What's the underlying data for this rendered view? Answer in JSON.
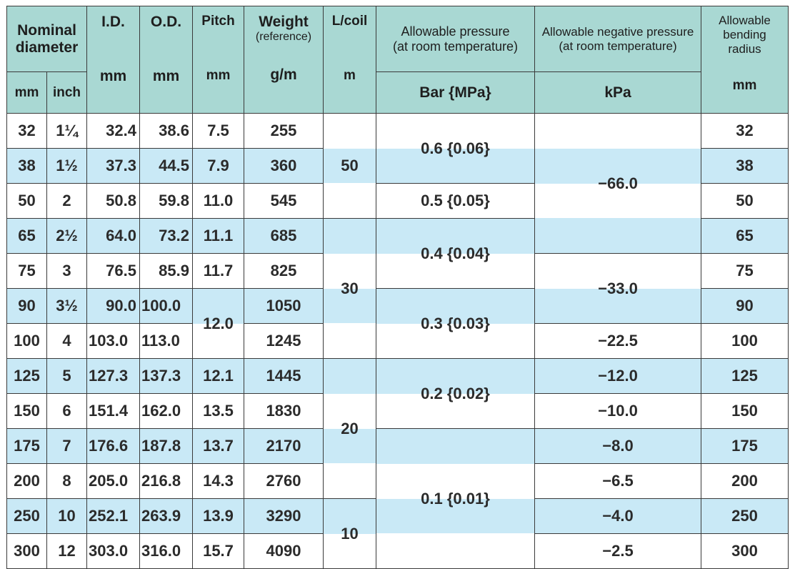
{
  "headers": {
    "nominal_diameter": "Nominal diameter",
    "id": "I.D.",
    "od": "O.D.",
    "pitch": "Pitch",
    "weight": "Weight",
    "weight_sub": "(reference)",
    "lcoil": "L/coil",
    "allow_pressure": "Allowable pressure",
    "allow_pressure_sub": "(at room temperature)",
    "allow_neg_pressure": "Allowable negative pressure",
    "allow_neg_pressure_sub": "(at room temperature)",
    "bending": "Allowable bending radius",
    "units": {
      "mm": "mm",
      "inch": "inch",
      "id": "mm",
      "od": "mm",
      "pitch": "mm",
      "weight": "g/m",
      "lcoil": "m",
      "pressure": "Bar {MPa}",
      "neg": "kPa",
      "bending": "mm"
    }
  },
  "rows": [
    {
      "mm": "32",
      "inch": "1¼",
      "id": "32.4",
      "od": "38.6",
      "pitch": "7.5",
      "weight": "255",
      "bend": "32"
    },
    {
      "mm": "38",
      "inch": "1½",
      "id": "37.3",
      "od": "44.5",
      "pitch": "7.9",
      "weight": "360",
      "bend": "38"
    },
    {
      "mm": "50",
      "inch": "2",
      "id": "50.8",
      "od": "59.8",
      "pitch": "11.0",
      "weight": "545",
      "bend": "50"
    },
    {
      "mm": "65",
      "inch": "2½",
      "id": "64.0",
      "od": "73.2",
      "pitch": "11.1",
      "weight": "685",
      "bend": "65"
    },
    {
      "mm": "75",
      "inch": "3",
      "id": "76.5",
      "od": "85.9",
      "pitch": "11.7",
      "weight": "825",
      "bend": "75"
    },
    {
      "mm": "90",
      "inch": "3½",
      "id": "90.0",
      "od": "100.0",
      "weight": "1050",
      "bend": "90"
    },
    {
      "mm": "100",
      "inch": "4",
      "id": "103.0",
      "od": "113.0",
      "weight": "1245",
      "bend": "100"
    },
    {
      "mm": "125",
      "inch": "5",
      "id": "127.3",
      "od": "137.3",
      "pitch": "12.1",
      "weight": "1445",
      "bend": "125"
    },
    {
      "mm": "150",
      "inch": "6",
      "id": "151.4",
      "od": "162.0",
      "pitch": "13.5",
      "weight": "1830",
      "bend": "150"
    },
    {
      "mm": "175",
      "inch": "7",
      "id": "176.6",
      "od": "187.8",
      "pitch": "13.7",
      "weight": "2170",
      "bend": "175"
    },
    {
      "mm": "200",
      "inch": "8",
      "id": "205.0",
      "od": "216.8",
      "pitch": "14.3",
      "weight": "2760",
      "bend": "200"
    },
    {
      "mm": "250",
      "inch": "10",
      "id": "252.1",
      "od": "263.9",
      "pitch": "13.9",
      "weight": "3290",
      "bend": "250"
    },
    {
      "mm": "300",
      "inch": "12",
      "id": "303.0",
      "od": "316.0",
      "pitch": "15.7",
      "weight": "4090",
      "bend": "300"
    }
  ],
  "pitch_merged": "12.0",
  "lcoil": {
    "g1": "50",
    "g2": "30",
    "g3": "20",
    "g4": "10"
  },
  "pressure": {
    "p1": "0.6 {0.06}",
    "p2": "0.5 {0.05}",
    "p3": "0.4 {0.04}",
    "p4": "0.3 {0.03}",
    "p5": "0.2 {0.02}",
    "p6": "0.1 {0.01}"
  },
  "negative": {
    "n1": "−66.0",
    "n2": "−33.0",
    "n3": "−22.5",
    "n4": "−12.0",
    "n5": "−10.0",
    "n6": "−8.0",
    "n7": "−6.5",
    "n8": "−4.0",
    "n9": "−2.5"
  },
  "colors": {
    "header_bg": "#a9d8d3",
    "stripe_bg": "#c9e9f6",
    "border": "#3a3a3a"
  }
}
